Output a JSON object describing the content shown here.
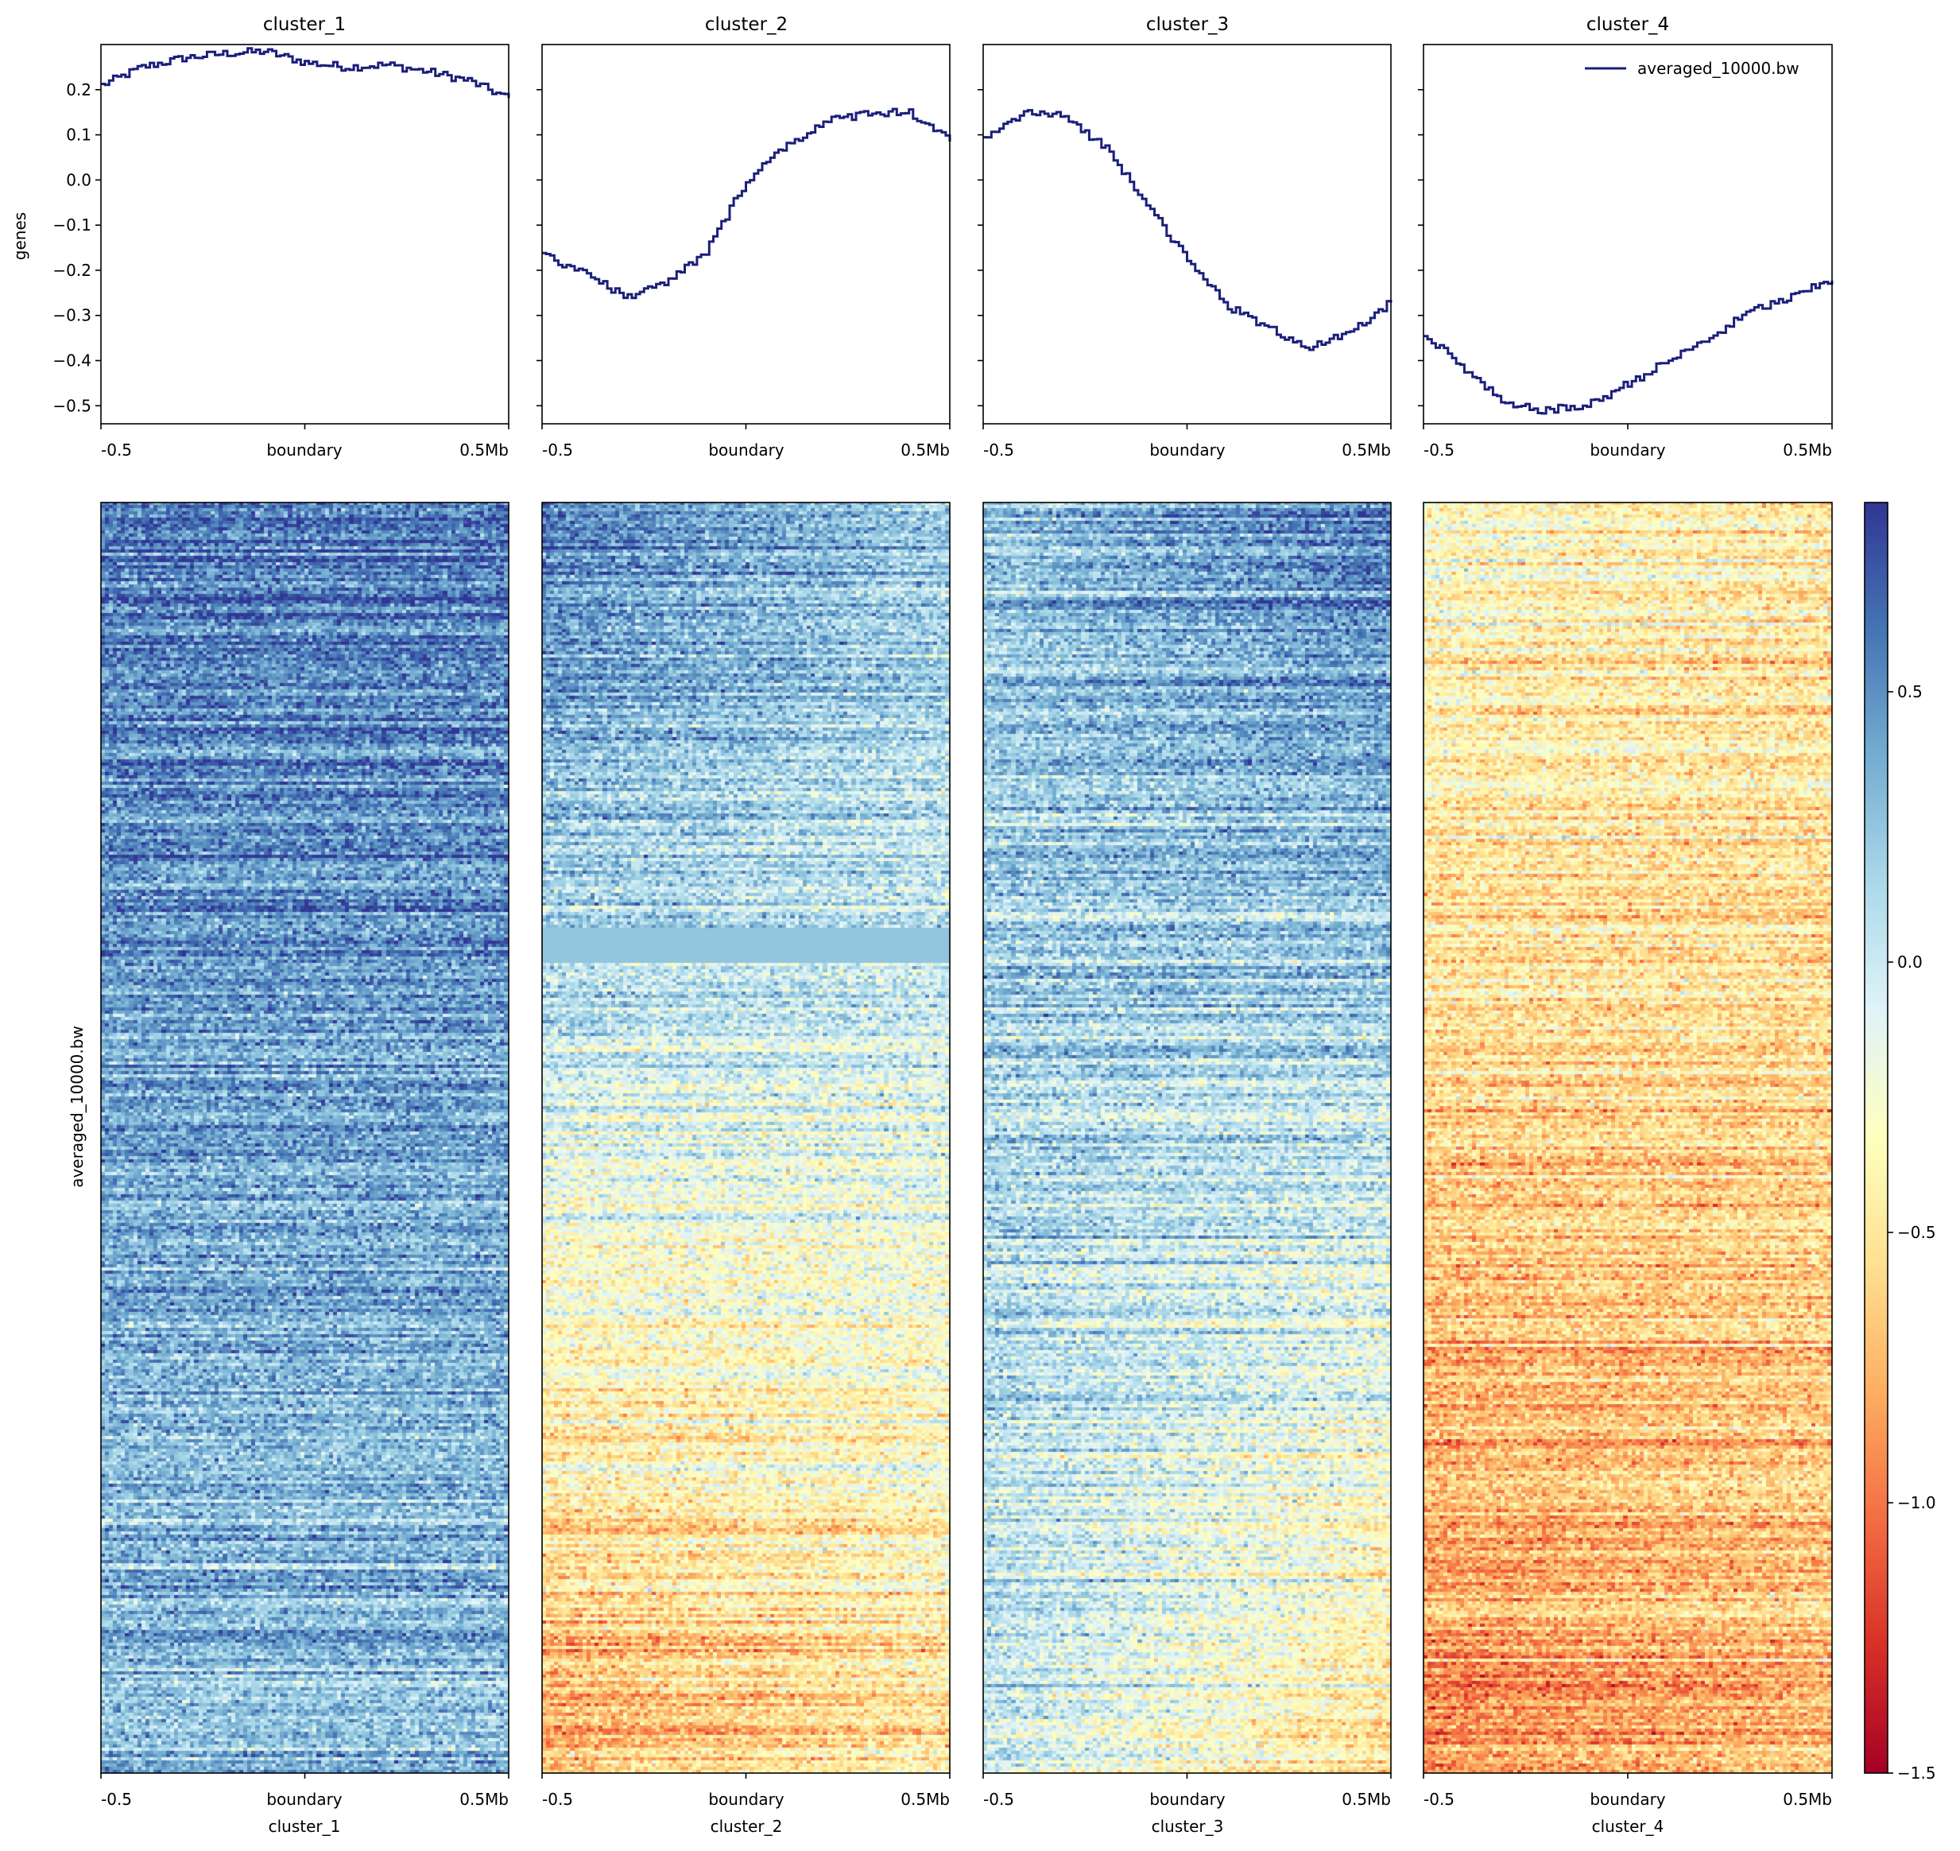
{
  "chart_data": {
    "type": "heatmap",
    "profile_type": "line",
    "ylabel_profile": "genes",
    "ylabel_heatmap": "averaged_10000.bw",
    "profile_ylim": [
      -0.54,
      0.3
    ],
    "profile_yticks": [
      "0.2",
      "0.1",
      "0.0",
      "−0.1",
      "−0.2",
      "−0.3",
      "−0.4",
      "−0.5"
    ],
    "profile_ytick_values": [
      0.2,
      0.1,
      0.0,
      -0.1,
      -0.2,
      -0.3,
      -0.4,
      -0.5
    ],
    "x_tick_labels": [
      "-0.5",
      "boundary",
      "0.5Mb"
    ],
    "legend": {
      "label": "averaged_10000.bw",
      "placement": "top-right"
    },
    "colorbar": {
      "colormap": "RdYlBu",
      "range": [
        -1.5,
        0.85
      ],
      "ticks": [
        "0.5",
        "0.0",
        "−0.5",
        "−1.0",
        "−1.5"
      ],
      "tick_values": [
        0.5,
        0.0,
        -0.5,
        -1.0,
        -1.5
      ],
      "gradient": [
        "#a50026",
        "#d73027",
        "#f46d43",
        "#fdae61",
        "#fee090",
        "#ffffbf",
        "#e0f3f8",
        "#abd9e9",
        "#74add1",
        "#4575b4",
        "#313695"
      ]
    },
    "line_color": "#1a1f7a",
    "series_x": [
      -0.5,
      -0.4,
      -0.3,
      -0.2,
      -0.1,
      0.0,
      0.1,
      0.2,
      0.3,
      0.4,
      0.5
    ],
    "clusters": [
      {
        "name": "cluster_1",
        "xlabel": "cluster_1",
        "profile": [
          0.21,
          0.25,
          0.27,
          0.28,
          0.285,
          0.26,
          0.25,
          0.255,
          0.24,
          0.22,
          0.18
        ],
        "heatmap_top_mean": 0.6,
        "heatmap_bottom_mean": 0.25,
        "heatmap_gradient": [
          0,
          0
        ],
        "missing_band": null
      },
      {
        "name": "cluster_2",
        "xlabel": "cluster_2",
        "profile": [
          -0.17,
          -0.2,
          -0.26,
          -0.23,
          -0.16,
          0.0,
          0.08,
          0.13,
          0.15,
          0.15,
          0.09
        ],
        "heatmap_top_mean": 0.45,
        "heatmap_bottom_mean": -0.65,
        "heatmap_gradient": [
          -0.35,
          0.3
        ],
        "missing_band": [
          0.335,
          0.362
        ]
      },
      {
        "name": "cluster_3",
        "xlabel": "cluster_3",
        "profile": [
          0.09,
          0.15,
          0.14,
          0.07,
          -0.05,
          -0.18,
          -0.28,
          -0.33,
          -0.37,
          -0.34,
          -0.27
        ],
        "heatmap_top_mean": 0.45,
        "heatmap_bottom_mean": -0.25,
        "heatmap_gradient": [
          0.35,
          -0.55
        ],
        "missing_band": null
      },
      {
        "name": "cluster_4",
        "xlabel": "cluster_4",
        "profile": [
          -0.34,
          -0.42,
          -0.5,
          -0.51,
          -0.5,
          -0.45,
          -0.4,
          -0.35,
          -0.29,
          -0.26,
          -0.22
        ],
        "heatmap_top_mean": -0.35,
        "heatmap_bottom_mean": -0.8,
        "heatmap_gradient": [
          -0.15,
          0.2
        ],
        "missing_band": null
      }
    ]
  }
}
